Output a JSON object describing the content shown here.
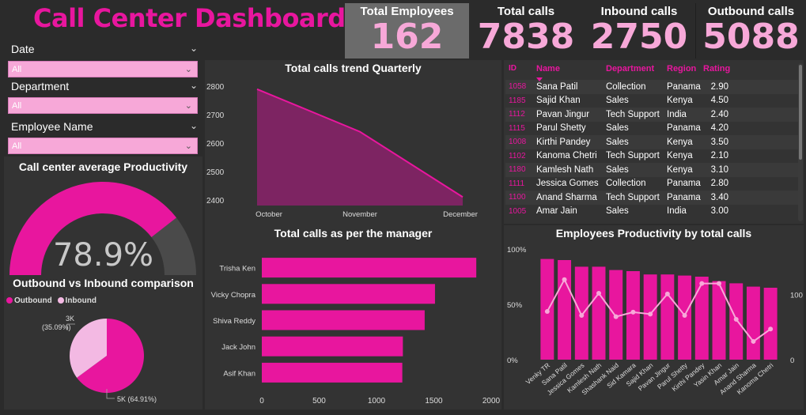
{
  "header": {
    "title": "Call Center Dashboard"
  },
  "kpis": [
    {
      "label": "Total Employees",
      "value": "162"
    },
    {
      "label": "Total calls",
      "value": "7838"
    },
    {
      "label": "Inbound calls",
      "value": "2750"
    },
    {
      "label": "Outbound calls",
      "value": "5088"
    }
  ],
  "filters": [
    {
      "label": "Date",
      "value": "All"
    },
    {
      "label": "Department",
      "value": "All"
    },
    {
      "label": "Employee Name",
      "value": "All"
    }
  ],
  "colors": {
    "accent": "#e8169e",
    "accent_light": "#f7a8d8",
    "area_fill": "#7d2462",
    "background": "#2b2b2b"
  },
  "productivity": {
    "title": "Call center average Productivity",
    "value_text": "78.9%",
    "value": 78.9
  },
  "pie": {
    "title": "Outbound vs Inbound comparison",
    "legend": [
      {
        "name": "Outbound",
        "color": "#e8169e"
      },
      {
        "name": "Inbound",
        "color": "#f3b9e3"
      }
    ],
    "label_inbound_value": "3K",
    "label_inbound_pct": "(35.09%)",
    "label_outbound": "5K (64.91%)"
  },
  "table": {
    "headers": [
      "ID",
      "Name",
      "Department",
      "Region",
      "Rating"
    ],
    "rows": [
      [
        "1058",
        "Sana Patil",
        "Collection",
        "Panama",
        "2.90"
      ],
      [
        "1185",
        "Sajid Khan",
        "Sales",
        "Kenya",
        "4.50"
      ],
      [
        "1112",
        "Pavan Jingur",
        "Tech Support",
        "India",
        "2.40"
      ],
      [
        "1115",
        "Parul Shetty",
        "Sales",
        "Panama",
        "4.20"
      ],
      [
        "1008",
        "Kirthi Pandey",
        "Sales",
        "Kenya",
        "3.50"
      ],
      [
        "1102",
        "Kanoma Chetri",
        "Tech Support",
        "Kenya",
        "2.10"
      ],
      [
        "1180",
        "Kamlesh Nath",
        "Sales",
        "Kenya",
        "3.10"
      ],
      [
        "1111",
        "Jessica Gomes",
        "Collection",
        "Panama",
        "2.80"
      ],
      [
        "1100",
        "Anand Sharma",
        "Tech Support",
        "Panama",
        "3.40"
      ],
      [
        "1005",
        "Amar Jain",
        "Sales",
        "India",
        "3.00"
      ]
    ]
  },
  "chart_data": [
    {
      "id": "trend",
      "type": "area",
      "title": "Total calls trend Quarterly",
      "categories": [
        "October",
        "November",
        "December"
      ],
      "values": [
        2790,
        2640,
        2410
      ],
      "ylim": [
        2380,
        2820
      ],
      "yticks": [
        2400,
        2500,
        2600,
        2700,
        2800
      ]
    },
    {
      "id": "manager",
      "type": "bar",
      "orientation": "horizontal",
      "title": "Total calls as per the manager",
      "categories": [
        "Trisha Ken",
        "Vicky Chopra",
        "Shiva Reddy",
        "Jack John",
        "Asif Khan"
      ],
      "values": [
        1870,
        1510,
        1420,
        1230,
        1225
      ],
      "xlim": [
        0,
        2000
      ],
      "xticks": [
        0,
        500,
        1000,
        1500,
        2000
      ]
    },
    {
      "id": "emp",
      "type": "bar",
      "title": "Employees Productivity by total calls",
      "categories": [
        "Venky TR",
        "Sana Patil",
        "Jessica Gomes",
        "Kamlesh Nath",
        "Shashank Naid",
        "Sid Kamara",
        "Sajid Khan",
        "Pavan Jingur",
        "Parul Shetty",
        "Kirthi Pandey",
        "Yasin Khan",
        "Amar Jain",
        "Anand Sharma",
        "Kanoma Chetri"
      ],
      "series": [
        {
          "name": "Productivity",
          "type": "bar",
          "axis": "left",
          "values": [
            91,
            90,
            84,
            84,
            81,
            80,
            77,
            77,
            76,
            75,
            71,
            69,
            66,
            65
          ]
        },
        {
          "name": "Total calls",
          "type": "line",
          "axis": "right",
          "values": [
            74,
            123,
            68,
            102,
            66,
            73,
            70,
            101,
            68,
            117,
            117,
            62,
            28,
            47
          ]
        }
      ],
      "left_ticks": [
        "0%",
        "50%",
        "100%"
      ],
      "right_ticks": [
        "0",
        "100"
      ],
      "right_max": 170
    },
    {
      "id": "pie",
      "type": "pie",
      "title": "Outbound vs Inbound comparison",
      "categories": [
        "Outbound",
        "Inbound"
      ],
      "values": [
        64.91,
        35.09
      ]
    }
  ]
}
